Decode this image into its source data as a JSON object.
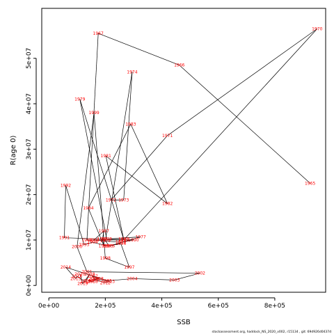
{
  "chart_data": {
    "type": "scatter",
    "connected": true,
    "xlabel": "SSB",
    "ylabel": "R(age 0)",
    "xlim": [
      -25000,
      980000
    ],
    "ylim": [
      -1500000,
      61000000
    ],
    "x_ticks": [
      {
        "value": 0,
        "label": "0e+00"
      },
      {
        "value": 200000,
        "label": "2e+05"
      },
      {
        "value": 400000,
        "label": "4e+05"
      },
      {
        "value": 600000,
        "label": "6e+05"
      },
      {
        "value": 800000,
        "label": "8e+05"
      }
    ],
    "y_ticks": [
      {
        "value": 0,
        "label": "0e+00"
      },
      {
        "value": 10000000,
        "label": "1e+07"
      },
      {
        "value": 20000000,
        "label": "2e+07"
      },
      {
        "value": 30000000,
        "label": "3e+07"
      },
      {
        "value": 40000000,
        "label": "4e+07"
      },
      {
        "value": 50000000,
        "label": "5e+07"
      }
    ],
    "point_color": "#ff0000",
    "line_color": "#000000",
    "points": [
      {
        "year": "1965",
        "ssb": 925000,
        "rec": 22500000
      },
      {
        "year": "1966",
        "ssb": 462000,
        "rec": 48500000
      },
      {
        "year": "1967",
        "ssb": 175000,
        "rec": 55500000
      },
      {
        "year": "1968",
        "ssb": 135000,
        "rec": 10000000
      },
      {
        "year": "1969",
        "ssb": 265000,
        "rec": 10000000
      },
      {
        "year": "1970",
        "ssb": 950000,
        "rec": 56500000
      },
      {
        "year": "1971",
        "ssb": 420000,
        "rec": 33000000
      },
      {
        "year": "1972",
        "ssb": 220000,
        "rec": 18800000
      },
      {
        "year": "1973",
        "ssb": 265000,
        "rec": 18800000
      },
      {
        "year": "1974",
        "ssb": 295000,
        "rec": 47000000
      },
      {
        "year": "1975",
        "ssb": 200000,
        "rec": 9800000
      },
      {
        "year": "1976",
        "ssb": 215000,
        "rec": 8700000
      },
      {
        "year": "1977",
        "ssb": 325000,
        "rec": 10700000
      },
      {
        "year": "1978",
        "ssb": 205000,
        "rec": 10200000
      },
      {
        "year": "1979",
        "ssb": 110000,
        "rec": 41000000
      },
      {
        "year": "1980",
        "ssb": 265000,
        "rec": 10200000
      },
      {
        "year": "1981",
        "ssb": 202000,
        "rec": 28500000
      },
      {
        "year": "1982",
        "ssb": 420000,
        "rec": 18000000
      },
      {
        "year": "1983",
        "ssb": 290000,
        "rec": 35500000
      },
      {
        "year": "1984",
        "ssb": 140000,
        "rec": 17000000
      },
      {
        "year": "1985",
        "ssb": 195000,
        "rec": 8700000
      },
      {
        "year": "1986",
        "ssb": 190000,
        "rec": 10200000
      },
      {
        "year": "1987",
        "ssb": 195000,
        "rec": 12000000
      },
      {
        "year": "1988",
        "ssb": 160000,
        "rec": 10000000
      },
      {
        "year": "1989",
        "ssb": 255000,
        "rec": 9500000
      },
      {
        "year": "1990",
        "ssb": 300000,
        "rec": 10000000
      },
      {
        "year": "1991",
        "ssb": 55000,
        "rec": 10500000
      },
      {
        "year": "1992",
        "ssb": 60000,
        "rec": 22000000
      },
      {
        "year": "1993",
        "ssb": 125000,
        "rec": 9000000
      },
      {
        "year": "1994",
        "ssb": 155000,
        "rec": 9500000
      },
      {
        "year": "1995",
        "ssb": 210000,
        "rec": 8700000
      },
      {
        "year": "1996",
        "ssb": 255000,
        "rec": 9200000
      },
      {
        "year": "1997",
        "ssb": 285000,
        "rec": 4000000
      },
      {
        "year": "1998",
        "ssb": 200000,
        "rec": 6000000
      },
      {
        "year": "1999",
        "ssb": 160000,
        "rec": 38000000
      },
      {
        "year": "2000",
        "ssb": 100000,
        "rec": 8500000
      },
      {
        "year": "2001",
        "ssb": 135000,
        "rec": 3000000
      },
      {
        "year": "2002",
        "ssb": 535000,
        "rec": 2700000
      },
      {
        "year": "2003",
        "ssb": 445000,
        "rec": 1200000
      },
      {
        "year": "2004",
        "ssb": 295000,
        "rec": 1500000
      },
      {
        "year": "2005",
        "ssb": 205000,
        "rec": 1000000
      },
      {
        "year": "2006",
        "ssb": 160000,
        "rec": 1500000
      },
      {
        "year": "2007",
        "ssb": 155000,
        "rec": 2000000
      },
      {
        "year": "2008",
        "ssb": 175000,
        "rec": 1500000
      },
      {
        "year": "2009",
        "ssb": 140000,
        "rec": 1000000
      },
      {
        "year": "2010",
        "ssb": 155000,
        "rec": 800000
      },
      {
        "year": "2011",
        "ssb": 165000,
        "rec": 1200000
      },
      {
        "year": "2012",
        "ssb": 200000,
        "rec": 600000
      },
      {
        "year": "2013",
        "ssb": 215000,
        "rec": 900000
      },
      {
        "year": "2014",
        "ssb": 60000,
        "rec": 4000000
      },
      {
        "year": "2015",
        "ssb": 95000,
        "rec": 1500000
      },
      {
        "year": "2016",
        "ssb": 100000,
        "rec": 2000000
      },
      {
        "year": "2017",
        "ssb": 130000,
        "rec": 800000
      },
      {
        "year": "2018",
        "ssb": 145000,
        "rec": 2500000
      },
      {
        "year": "2019",
        "ssb": 120000,
        "rec": 400000
      },
      {
        "year": "2020",
        "ssb": 110000,
        "rec": 2500000
      }
    ]
  },
  "footer": {
    "text": "stockassessment.org, haddock_NS_2020_v002, r15134 , git: 69d926d0437d"
  }
}
